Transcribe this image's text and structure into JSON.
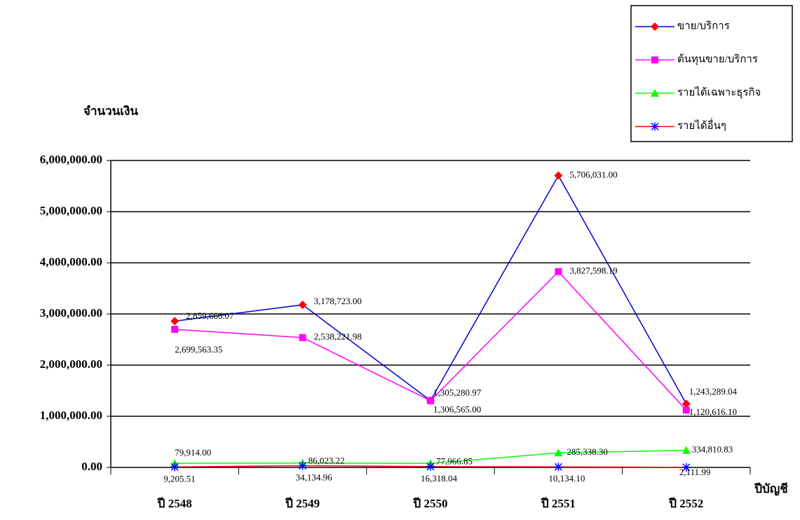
{
  "chart_data": {
    "type": "line",
    "y_axis_title": "จำนวนเงิน",
    "x_axis_title": "ปีบัญชี",
    "categories": [
      "ปี 2548",
      "ปี 2549",
      "ปี 2550",
      "ปี 2551",
      "ปี 2552"
    ],
    "ylim": [
      0,
      6000000
    ],
    "yticks": [
      {
        "value": 0,
        "label": "0.00"
      },
      {
        "value": 1000000,
        "label": "1,000,000.00"
      },
      {
        "value": 2000000,
        "label": "2,000,000.00"
      },
      {
        "value": 3000000,
        "label": "3,000,000.00"
      },
      {
        "value": 4000000,
        "label": "4,000,000.00"
      },
      {
        "value": 5000000,
        "label": "5,000,000.00"
      },
      {
        "value": 6000000,
        "label": "6,000,000.00"
      }
    ],
    "grid": true,
    "series": [
      {
        "name": "ขาย/บริการ",
        "color": "#0000cc",
        "marker": "diamond",
        "marker_color": "#ff0000",
        "values": [
          2859666.07,
          3178723.0,
          1306565.0,
          5706031.0,
          1243289.04
        ],
        "value_labels": [
          "2,859,666.07",
          "3,178,723.00",
          "1,306,565.00",
          "5,706,031.00",
          "1,243,289.04"
        ]
      },
      {
        "name": "ต้นทุนขาย/บริการ",
        "color": "#ff00ff",
        "marker": "square",
        "marker_color": "#ff00ff",
        "values": [
          2699563.35,
          2538221.98,
          1305280.97,
          3827598.19,
          1120616.1
        ],
        "value_labels": [
          "2,699,563.35",
          "2,538,221.98",
          "1,305,280.97",
          "3,827,598.19",
          "1,120,616.10"
        ]
      },
      {
        "name": "รายได้เฉพาะธุรกิจ",
        "color": "#00ff00",
        "marker": "triangle",
        "marker_color": "#00ff00",
        "values": [
          79914.0,
          86023.22,
          77966.85,
          285338.3,
          334810.83
        ],
        "value_labels": [
          "79,914.00",
          "86,023.22",
          "77,966.85",
          "285,338.30",
          "334,810.83"
        ]
      },
      {
        "name": "รายได้อื่นๆ",
        "color": "#ff0000",
        "marker": "asterisk",
        "marker_color": "#0000ff",
        "values": [
          9205.51,
          34134.96,
          16318.04,
          10134.1,
          2111.99
        ],
        "value_labels": [
          "9,205.51",
          "34,134.96",
          "16,318.04",
          "10,134.10",
          "2,111.99"
        ]
      }
    ]
  }
}
